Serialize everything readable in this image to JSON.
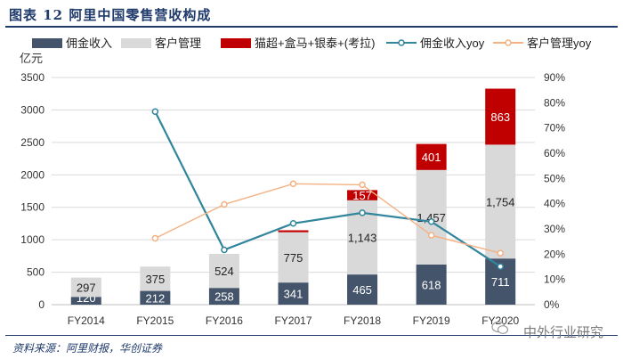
{
  "header": {
    "title": "图表 12   阿里中国零售营收构成"
  },
  "footer": {
    "source": "资料来源：阿里财报，华创证券",
    "watermark": "中外行业研究"
  },
  "colors": {
    "commission": "#44546a",
    "customer": "#d9d9d9",
    "new_retail": "#c00000",
    "commission_yoy": "#31859c",
    "customer_yoy": "#f4b183"
  },
  "chart_data": {
    "type": "bar",
    "stacked": true,
    "categories": [
      "FY2014",
      "FY2015",
      "FY2016",
      "FY2017",
      "FY2018",
      "FY2019",
      "FY2020"
    ],
    "ylabel": "亿元",
    "ylim": [
      0,
      3500
    ],
    "yticks": [
      "0",
      "500",
      "1000",
      "1500",
      "2000",
      "2500",
      "3000",
      "3500"
    ],
    "y2lim": [
      0,
      0.9
    ],
    "y2ticks": [
      "0%",
      "10%",
      "20%",
      "30%",
      "40%",
      "50%",
      "60%",
      "70%",
      "80%",
      "90%"
    ],
    "grid": true,
    "legend_position": "top",
    "series": [
      {
        "name": "佣金收入",
        "kind": "bar",
        "values": [
          120,
          212,
          258,
          341,
          465,
          618,
          711
        ],
        "labels": [
          "120",
          "212",
          "258",
          "341",
          "465",
          "618",
          "711"
        ]
      },
      {
        "name": "客户管理",
        "kind": "bar",
        "values": [
          297,
          375,
          524,
          775,
          1143,
          1457,
          1754
        ],
        "labels": [
          "297",
          "375",
          "524",
          "775",
          "1,143",
          "1,457",
          "1,754"
        ]
      },
      {
        "name": "猫超+盒马+银泰+(考拉)",
        "kind": "bar",
        "values": [
          0,
          0,
          0,
          30,
          157,
          401,
          863
        ],
        "labels": [
          "",
          "",
          "",
          "",
          "157",
          "401",
          "863"
        ]
      },
      {
        "name": "佣金收入yoy",
        "kind": "line",
        "axis": "right",
        "values": [
          null,
          0.765,
          0.217,
          0.322,
          0.364,
          0.329,
          0.151
        ]
      },
      {
        "name": "客户管理yoy",
        "kind": "line",
        "axis": "right",
        "values": [
          null,
          0.263,
          0.397,
          0.479,
          0.475,
          0.275,
          0.204
        ]
      }
    ]
  }
}
